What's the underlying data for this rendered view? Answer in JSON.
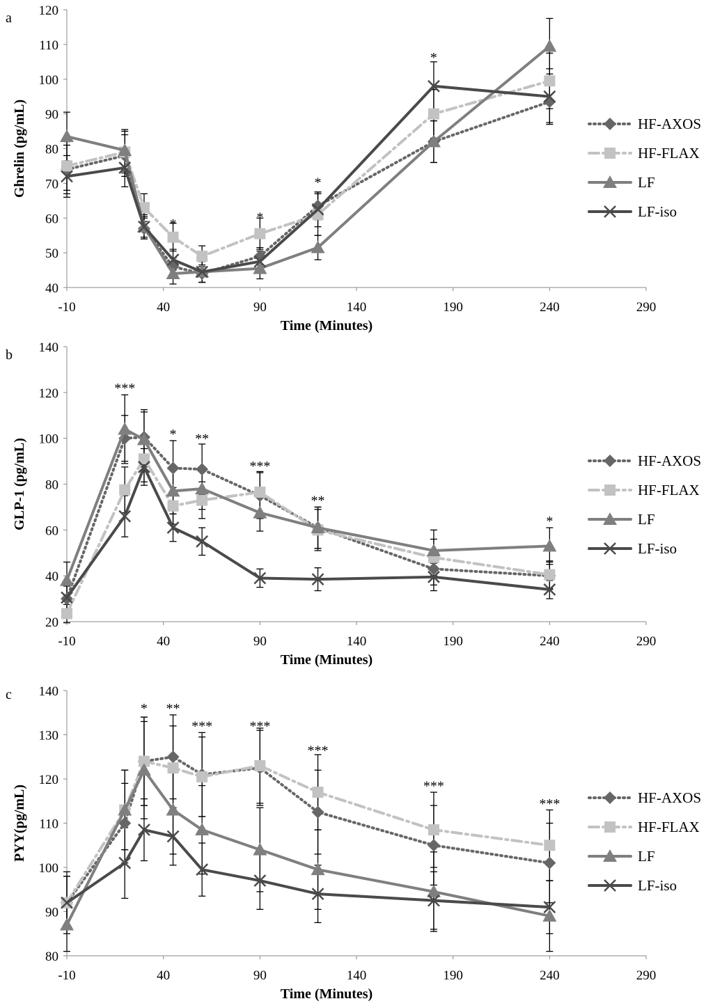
{
  "series_styles": {
    "HF-AXOS": {
      "color": "#666666",
      "marker": "diamond",
      "dash": "dotted"
    },
    "HF-FLAX": {
      "color": "#c2c2c2",
      "marker": "square",
      "dash": "dashdot"
    },
    "LF": {
      "color": "#7f7f7f",
      "marker": "triangle",
      "dash": "solid"
    },
    "LF-iso": {
      "color": "#4a4a4a",
      "marker": "x",
      "dash": "solid"
    }
  },
  "chart_data": [
    {
      "type": "line",
      "panel_label": "a",
      "title": "",
      "xlabel": "Time (Minutes)",
      "ylabel": "Ghrelin (pg/mL)",
      "xlim": [
        -10,
        290
      ],
      "ylim": [
        40,
        120
      ],
      "x_ticks": [
        -10,
        40,
        90,
        140,
        190,
        240,
        290
      ],
      "y_ticks": [
        40,
        50,
        60,
        70,
        80,
        90,
        100,
        110,
        120
      ],
      "x": [
        -10,
        20,
        30,
        45,
        60,
        90,
        120,
        180,
        240
      ],
      "legend": [
        "HF-AXOS",
        "HF-FLAX",
        "LF",
        "LF-iso"
      ],
      "series": [
        {
          "name": "HF-AXOS",
          "values": [
            74,
            78,
            57,
            46,
            44,
            49,
            63.5,
            82,
            93.5
          ],
          "errors": [
            7,
            6,
            3,
            2.5,
            2.5,
            2.5,
            4,
            6,
            6
          ]
        },
        {
          "name": "HF-FLAX",
          "values": [
            75,
            79,
            63,
            54.5,
            49,
            55.5,
            61,
            90,
            99.5
          ],
          "errors": [
            7,
            6,
            4,
            4,
            3,
            4.5,
            6,
            7,
            8
          ]
        },
        {
          "name": "LF",
          "values": [
            83.5,
            79.5,
            57.5,
            44,
            44.5,
            45.5,
            51.5,
            82,
            109.5
          ],
          "errors": [
            7,
            6,
            3,
            3,
            3,
            3,
            3.5,
            6,
            8
          ]
        },
        {
          "name": "LF-iso",
          "values": [
            72,
            74.5,
            57.5,
            48,
            44.5,
            47.5,
            62.5,
            98,
            95
          ],
          "errors": [
            6,
            5.5,
            3.5,
            3,
            3,
            3,
            5,
            7,
            8
          ]
        }
      ],
      "annotations": [
        {
          "x": 45,
          "y": 59,
          "text": "*"
        },
        {
          "x": 90,
          "y": 61,
          "text": "*"
        },
        {
          "x": 120,
          "y": 71,
          "text": "*"
        },
        {
          "x": 180,
          "y": 107,
          "text": "*"
        }
      ]
    },
    {
      "type": "line",
      "panel_label": "b",
      "title": "",
      "xlabel": "Time (Minutes)",
      "ylabel": "GLP-1 (pg/mL)",
      "xlim": [
        -10,
        290
      ],
      "ylim": [
        20,
        140
      ],
      "x_ticks": [
        -10,
        40,
        90,
        140,
        190,
        240,
        290
      ],
      "y_ticks": [
        20,
        40,
        60,
        80,
        100,
        120,
        140
      ],
      "x": [
        -10,
        20,
        30,
        45,
        60,
        90,
        120,
        180,
        240
      ],
      "legend": [
        "HF-AXOS",
        "HF-FLAX",
        "LF",
        "LF-iso"
      ],
      "series": [
        {
          "name": "HF-AXOS",
          "values": [
            30,
            100,
            100.5,
            87,
            86.5,
            75,
            61,
            43,
            40
          ],
          "errors": [
            6,
            10,
            12,
            12,
            11,
            10,
            9,
            7,
            6
          ]
        },
        {
          "name": "HF-FLAX",
          "values": [
            23.5,
            77.5,
            91,
            70.5,
            73,
            76.5,
            60,
            48,
            40.5
          ],
          "errors": [
            4,
            10,
            10,
            8,
            8,
            9,
            9,
            8,
            6
          ]
        },
        {
          "name": "LF",
          "values": [
            38,
            104,
            99.5,
            77,
            78,
            67.5,
            61,
            51,
            53
          ],
          "errors": [
            8,
            15,
            12,
            10,
            9,
            8,
            9,
            9,
            8
          ]
        },
        {
          "name": "LF-iso",
          "values": [
            30.5,
            66,
            87.5,
            61,
            55,
            39,
            38.5,
            39.5,
            34
          ],
          "errors": [
            5,
            9,
            8,
            6,
            6,
            4,
            5,
            6,
            4
          ]
        }
      ],
      "annotations": [
        {
          "x": 20,
          "y": 123,
          "text": "***"
        },
        {
          "x": 45,
          "y": 103,
          "text": "*"
        },
        {
          "x": 60,
          "y": 101,
          "text": "**"
        },
        {
          "x": 90,
          "y": 89,
          "text": "***"
        },
        {
          "x": 120,
          "y": 74,
          "text": "**"
        },
        {
          "x": 240,
          "y": 65,
          "text": "*"
        }
      ]
    },
    {
      "type": "line",
      "panel_label": "c",
      "title": "",
      "xlabel": "Time (Minutes)",
      "ylabel": "PYY(pg/mL)",
      "xlim": [
        -10,
        290
      ],
      "ylim": [
        80,
        140
      ],
      "x_ticks": [
        -10,
        40,
        90,
        140,
        190,
        240,
        290
      ],
      "y_ticks": [
        80,
        90,
        100,
        110,
        120,
        130,
        140
      ],
      "x": [
        -10,
        20,
        30,
        45,
        60,
        90,
        120,
        180,
        240
      ],
      "legend": [
        "HF-AXOS",
        "HF-FLAX",
        "LF",
        "LF-iso"
      ],
      "series": [
        {
          "name": "HF-AXOS",
          "values": [
            92,
            110,
            124,
            125,
            121,
            122.5,
            112.5,
            105,
            101
          ],
          "errors": [
            6,
            9,
            10,
            9.5,
            9.5,
            8.5,
            9.5,
            9,
            9
          ]
        },
        {
          "name": "HF-FLAX",
          "values": [
            92,
            113,
            124,
            122.5,
            120.5,
            123,
            117,
            108.5,
            105
          ],
          "errors": [
            6,
            9,
            10,
            9.5,
            9,
            8.5,
            8.5,
            8.5,
            8
          ]
        },
        {
          "name": "LF",
          "values": [
            87,
            113,
            122,
            113,
            108.5,
            104,
            99.5,
            94.5,
            89
          ],
          "errors": [
            6,
            9,
            11,
            10,
            10,
            9.5,
            9,
            9,
            8
          ]
        },
        {
          "name": "LF-iso",
          "values": [
            92,
            101,
            108.5,
            107,
            99.5,
            97,
            94,
            92.5,
            91
          ],
          "errors": [
            7,
            8,
            7,
            6.5,
            6,
            6.5,
            6.5,
            6.5,
            6
          ]
        }
      ],
      "annotations": [
        {
          "x": 30,
          "y": 136.5,
          "text": "*"
        },
        {
          "x": 45,
          "y": 136.5,
          "text": "**"
        },
        {
          "x": 60,
          "y": 132.5,
          "text": "***"
        },
        {
          "x": 90,
          "y": 132.5,
          "text": "***"
        },
        {
          "x": 120,
          "y": 127,
          "text": "***"
        },
        {
          "x": 180,
          "y": 119,
          "text": "***"
        },
        {
          "x": 240,
          "y": 115,
          "text": "***"
        }
      ]
    }
  ]
}
